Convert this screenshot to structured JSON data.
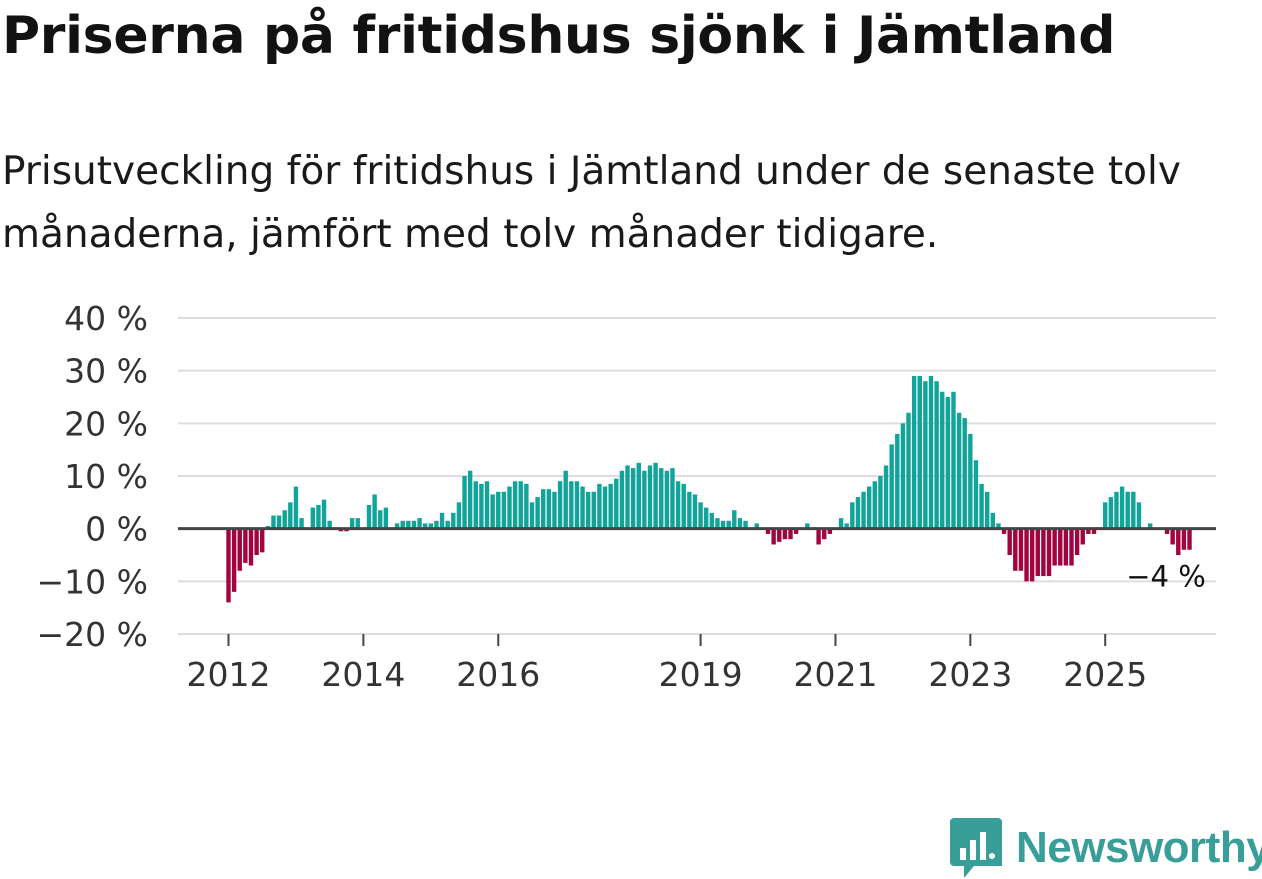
{
  "title": "Priserna på fritidshus sjönk i Jämtland",
  "subtitle": "Prisutveckling för fritidshus i Jämtland under de senaste tolv månaderna, jämfört med tolv månader tidigare.",
  "brand": {
    "name": "Newsworthy",
    "icon": "newsworthy-logo-icon",
    "color": "#3a9e98"
  },
  "colors": {
    "positive": "#10a49b",
    "negative": "#a3043f",
    "zero_line": "#444444",
    "grid": "#dddddd",
    "text": "#333333"
  },
  "chart_data": {
    "type": "bar",
    "title": "Priserna på fritidshus sjönk i Jämtland",
    "xlabel": "",
    "ylabel": "",
    "ylim": [
      -20,
      40
    ],
    "y_ticks": [
      40,
      30,
      20,
      10,
      0,
      -10,
      -20
    ],
    "y_tick_labels": [
      "40 %",
      "30 %",
      "20 %",
      "10 %",
      "0 %",
      "−10 %",
      "−20 %"
    ],
    "x_ticks": [
      {
        "label": "2012",
        "index": 0
      },
      {
        "label": "2014",
        "index": 24
      },
      {
        "label": "2016",
        "index": 48
      },
      {
        "label": "2019",
        "index": 84
      },
      {
        "label": "2021",
        "index": 108
      },
      {
        "label": "2023",
        "index": 132
      },
      {
        "label": "2025",
        "index": 156
      }
    ],
    "start": "2012-01",
    "end_label": "−4 %",
    "values": [
      -14,
      -12,
      -8,
      -6.5,
      -7,
      -5,
      -4.5,
      0.5,
      2.5,
      2.5,
      3.5,
      5,
      8,
      2,
      0,
      4,
      4.5,
      5.5,
      1.5,
      0,
      -0.5,
      -0.5,
      2,
      2,
      0,
      4.5,
      6.5,
      3.5,
      4,
      0,
      1,
      1.5,
      1.5,
      1.5,
      2,
      1,
      1,
      1.5,
      3,
      1.5,
      3,
      5,
      10,
      11,
      9,
      8.5,
      9,
      6.5,
      7,
      7,
      8,
      9,
      9,
      8.5,
      5,
      6,
      7.5,
      7.5,
      7,
      9,
      11,
      9,
      9,
      8,
      7,
      7,
      8.5,
      8,
      8.5,
      9.5,
      11,
      12,
      11.5,
      12.5,
      11,
      12,
      12.5,
      11.5,
      11,
      11.5,
      9,
      8.5,
      7,
      6.5,
      5,
      4,
      3,
      2,
      1.5,
      1.5,
      3.5,
      2,
      1.5,
      0,
      1,
      0,
      -1,
      -3,
      -2.5,
      -2,
      -2,
      -1,
      0,
      1,
      0,
      -3,
      -2,
      -1,
      0,
      2,
      1,
      5,
      6,
      7,
      8,
      9,
      10,
      12,
      16,
      18,
      20,
      22,
      29,
      29,
      28,
      29,
      28,
      26,
      25,
      26,
      22,
      21,
      18,
      13,
      8.5,
      7,
      3,
      1,
      -1,
      -5,
      -8,
      -8,
      -10,
      -10,
      -9,
      -9,
      -9,
      -7,
      -7,
      -7,
      -7,
      -5,
      -3,
      -1,
      -1,
      0,
      5,
      6,
      7,
      8,
      7,
      7,
      5,
      0,
      1,
      0,
      0,
      -1,
      -3,
      -5,
      -4,
      -4
    ]
  }
}
